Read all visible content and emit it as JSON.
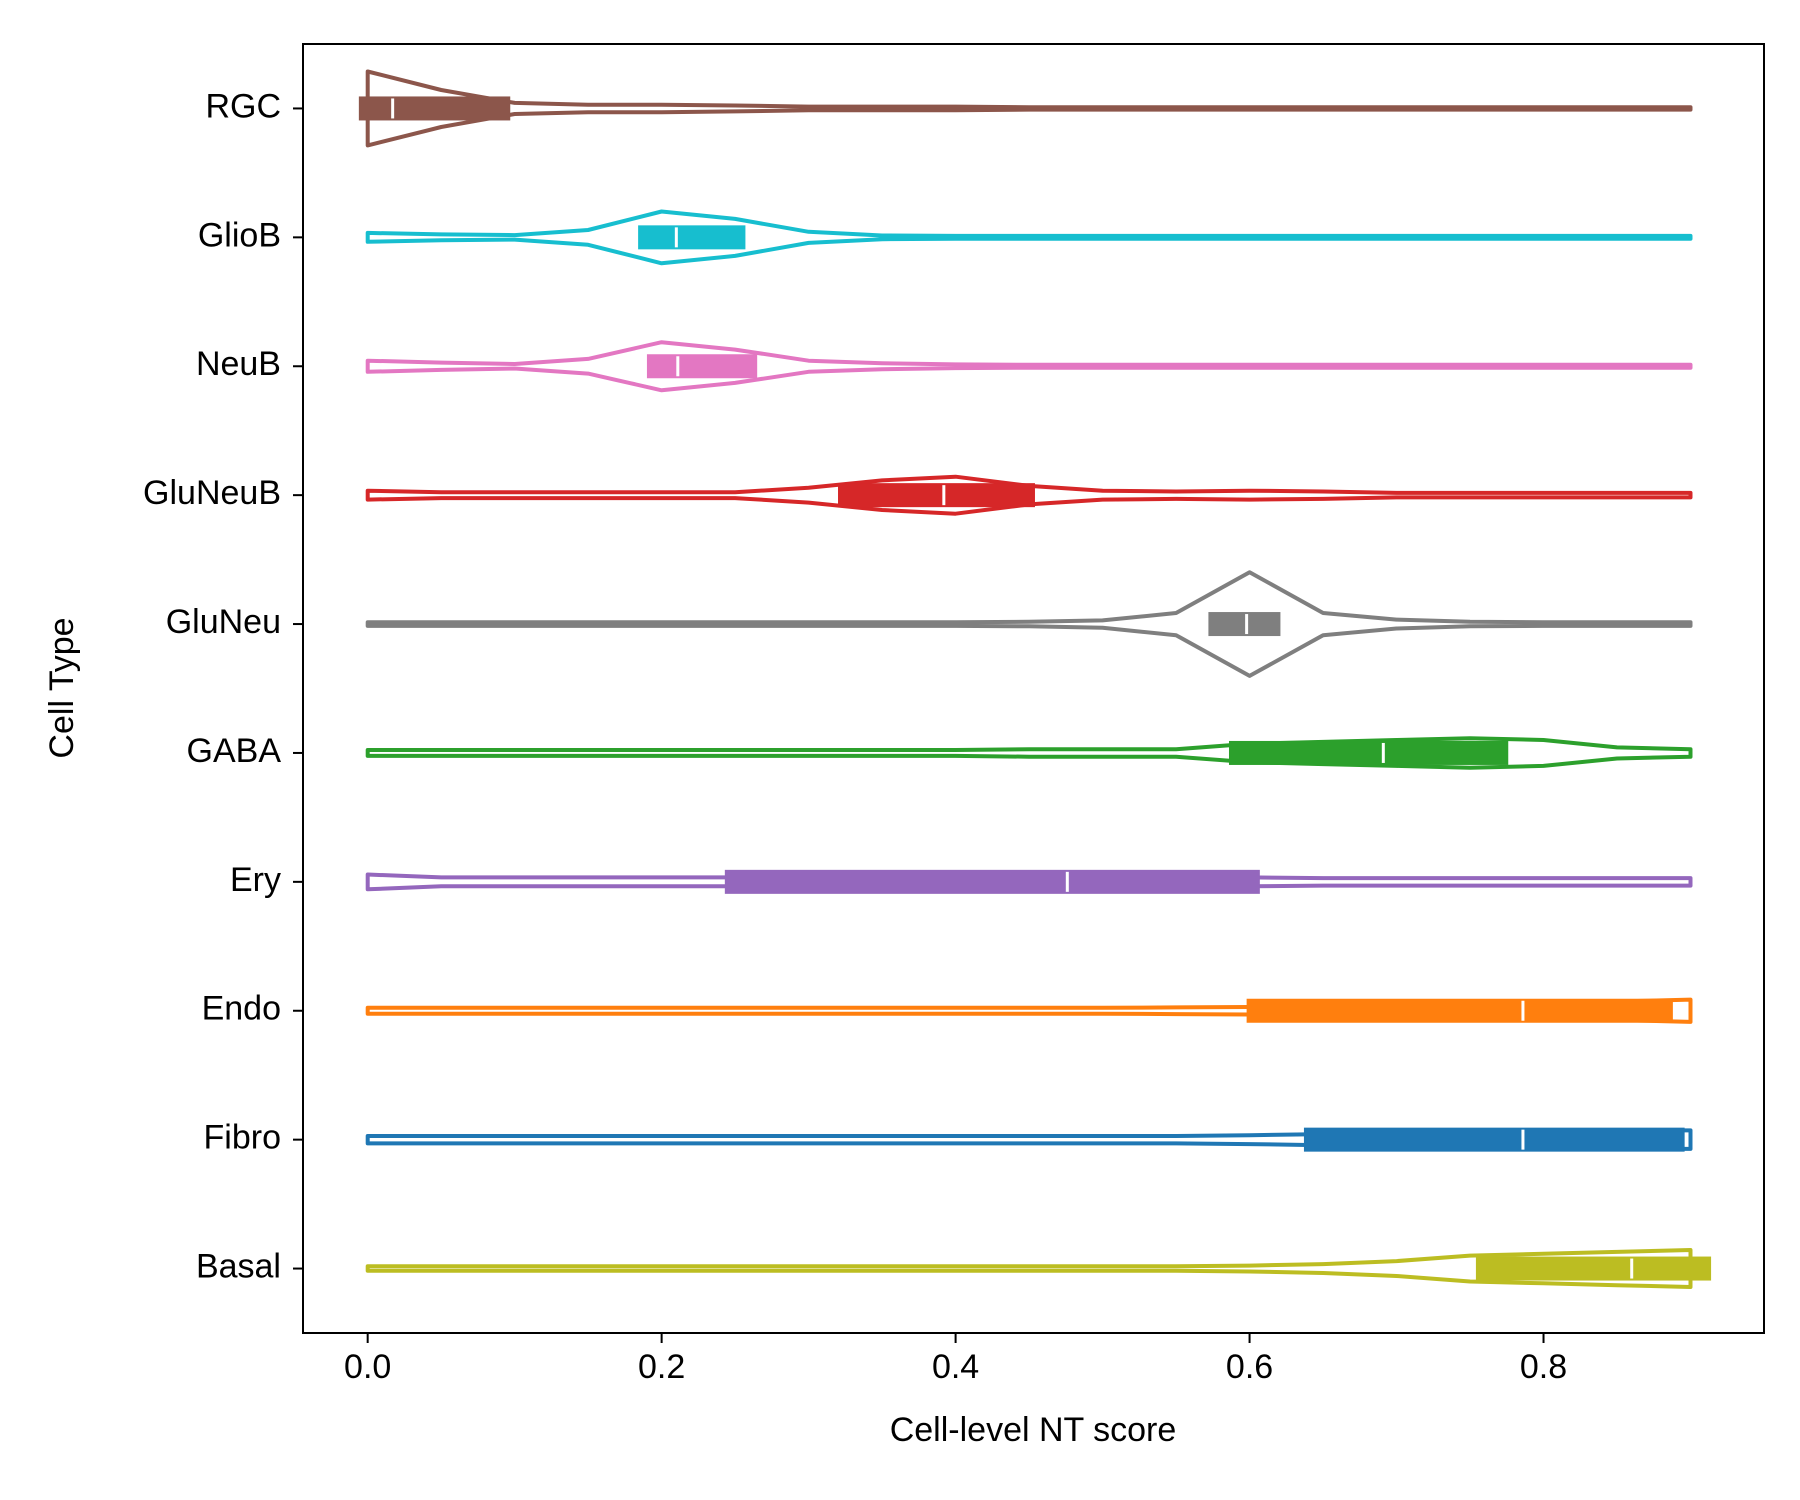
{
  "chart_data": {
    "type": "violin",
    "x_label": "Cell-level NT score",
    "y_label": "Cell Type",
    "xlim": [
      -0.044,
      0.95
    ],
    "xticks": [
      {
        "value": 0,
        "label": "0.0"
      },
      0.2,
      0.4,
      0.6,
      0.8
    ],
    "density_x": [
      0,
      0.05,
      0.1,
      0.15,
      0.2,
      0.25,
      0.3,
      0.35,
      0.4,
      0.45,
      0.5,
      0.55,
      0.6,
      0.65,
      0.7,
      0.75,
      0.8,
      0.85,
      0.9
    ],
    "series": [
      {
        "name": "RGC",
        "color": "#8c564b",
        "q1": -0.006,
        "median": 0.017,
        "q3": 0.097,
        "density": [
          1.0,
          0.5,
          0.15,
          0.1,
          0.1,
          0.08,
          0.05,
          0.05,
          0.05,
          0.03,
          0.03,
          0.03,
          0.03,
          0.03,
          0.03,
          0.03,
          0.03,
          0.03,
          0.03
        ]
      },
      {
        "name": "GlioB",
        "color": "#17becf",
        "q1": 0.184,
        "median": 0.21,
        "q3": 0.257,
        "density": [
          0.12,
          0.08,
          0.06,
          0.2,
          0.7,
          0.5,
          0.15,
          0.05,
          0.04,
          0.04,
          0.04,
          0.04,
          0.04,
          0.04,
          0.04,
          0.04,
          0.04,
          0.04,
          0.04
        ]
      },
      {
        "name": "NeuB",
        "color": "#e377c2",
        "q1": 0.19,
        "median": 0.211,
        "q3": 0.265,
        "density": [
          0.15,
          0.1,
          0.06,
          0.2,
          0.65,
          0.45,
          0.15,
          0.08,
          0.05,
          0.04,
          0.04,
          0.04,
          0.04,
          0.04,
          0.04,
          0.04,
          0.04,
          0.04,
          0.04
        ]
      },
      {
        "name": "GluNeuB",
        "color": "#d62728",
        "q1": 0.32,
        "median": 0.392,
        "q3": 0.454,
        "density": [
          0.12,
          0.08,
          0.08,
          0.08,
          0.08,
          0.08,
          0.2,
          0.4,
          0.5,
          0.25,
          0.12,
          0.1,
          0.12,
          0.1,
          0.06,
          0.06,
          0.06,
          0.06,
          0.06
        ]
      },
      {
        "name": "GluNeu",
        "color": "#7f7f7f",
        "q1": 0.572,
        "median": 0.598,
        "q3": 0.621,
        "density": [
          0.05,
          0.05,
          0.05,
          0.05,
          0.05,
          0.05,
          0.05,
          0.05,
          0.05,
          0.06,
          0.1,
          0.3,
          1.4,
          0.3,
          0.12,
          0.06,
          0.05,
          0.05,
          0.05
        ]
      },
      {
        "name": "GABA",
        "color": "#2ca02c",
        "q1": 0.586,
        "median": 0.691,
        "q3": 0.776,
        "density": [
          0.08,
          0.08,
          0.08,
          0.08,
          0.08,
          0.08,
          0.08,
          0.08,
          0.08,
          0.1,
          0.1,
          0.1,
          0.25,
          0.3,
          0.35,
          0.4,
          0.35,
          0.15,
          0.1
        ]
      },
      {
        "name": "Ery",
        "color": "#9467bd",
        "q1": 0.243,
        "median": 0.476,
        "q3": 0.607,
        "density": [
          0.2,
          0.12,
          0.12,
          0.12,
          0.12,
          0.12,
          0.12,
          0.12,
          0.12,
          0.12,
          0.12,
          0.12,
          0.12,
          0.1,
          0.1,
          0.1,
          0.1,
          0.1,
          0.1
        ]
      },
      {
        "name": "Endo",
        "color": "#ff7f0e",
        "q1": 0.598,
        "median": 0.786,
        "q3": 0.888,
        "density": [
          0.08,
          0.08,
          0.08,
          0.08,
          0.08,
          0.08,
          0.08,
          0.08,
          0.08,
          0.08,
          0.08,
          0.09,
          0.1,
          0.12,
          0.15,
          0.18,
          0.2,
          0.25,
          0.3
        ]
      },
      {
        "name": "Fibro",
        "color": "#1f77b4",
        "q1": 0.637,
        "median": 0.786,
        "q3": 0.896,
        "density": [
          0.1,
          0.1,
          0.1,
          0.1,
          0.1,
          0.1,
          0.1,
          0.1,
          0.1,
          0.1,
          0.1,
          0.1,
          0.12,
          0.15,
          0.25,
          0.25,
          0.25,
          0.25,
          0.25
        ]
      },
      {
        "name": "Basal",
        "color": "#bcbd22",
        "q1": 0.754,
        "median": 0.86,
        "q3": 0.914,
        "density": [
          0.06,
          0.06,
          0.06,
          0.06,
          0.06,
          0.06,
          0.06,
          0.06,
          0.06,
          0.06,
          0.06,
          0.06,
          0.08,
          0.12,
          0.2,
          0.35,
          0.4,
          0.45,
          0.5
        ]
      }
    ]
  }
}
